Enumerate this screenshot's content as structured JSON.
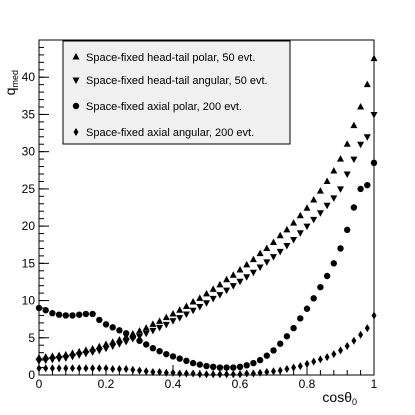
{
  "chart_data": {
    "type": "scatter",
    "xlabel": "cosθ",
    "xlabel_sub": "0",
    "ylabel": "q",
    "ylabel_sub": "med",
    "xlim": [
      0,
      1
    ],
    "ylim": [
      0,
      45
    ],
    "x_ticks": [
      0,
      0.2,
      0.4,
      0.6,
      0.8,
      1
    ],
    "x_tick_labels": [
      "0",
      "0.2",
      "0.4",
      "0.6",
      "0.8",
      "1"
    ],
    "y_ticks": [
      0,
      5,
      10,
      15,
      20,
      25,
      30,
      35,
      40
    ],
    "y_tick_labels": [
      "0",
      "5",
      "10",
      "15",
      "20",
      "25",
      "30",
      "35",
      "40"
    ],
    "grid": false,
    "legend_position": "top-left",
    "series": [
      {
        "name": "Space-fixed head-tail polar, 50 evt.",
        "marker": "triangle-up",
        "x": [
          0.0,
          0.02,
          0.04,
          0.06,
          0.08,
          0.1,
          0.12,
          0.14,
          0.16,
          0.18,
          0.2,
          0.22,
          0.24,
          0.26,
          0.28,
          0.3,
          0.32,
          0.34,
          0.36,
          0.38,
          0.4,
          0.42,
          0.44,
          0.46,
          0.48,
          0.5,
          0.52,
          0.54,
          0.56,
          0.58,
          0.6,
          0.62,
          0.64,
          0.66,
          0.68,
          0.7,
          0.72,
          0.74,
          0.76,
          0.78,
          0.8,
          0.82,
          0.84,
          0.86,
          0.88,
          0.9,
          0.92,
          0.94,
          0.96,
          0.98,
          1.0
        ],
        "y": [
          2.3,
          2.4,
          2.5,
          2.6,
          2.7,
          2.9,
          3.1,
          3.3,
          3.5,
          3.8,
          4.1,
          4.4,
          4.7,
          5.1,
          5.5,
          5.9,
          6.3,
          6.8,
          7.2,
          7.7,
          8.2,
          8.7,
          9.2,
          9.8,
          10.3,
          10.9,
          11.5,
          12.1,
          12.8,
          13.4,
          14.1,
          14.8,
          15.5,
          16.3,
          17.0,
          17.8,
          18.7,
          19.5,
          20.4,
          21.4,
          22.4,
          23.5,
          24.7,
          26.0,
          27.4,
          29.0,
          31.0,
          33.5,
          36.0,
          39.0,
          42.5
        ]
      },
      {
        "name": "Space-fixed head-tail angular, 50 evt.",
        "marker": "triangle-down",
        "x": [
          0.0,
          0.02,
          0.04,
          0.06,
          0.08,
          0.1,
          0.12,
          0.14,
          0.16,
          0.18,
          0.2,
          0.22,
          0.24,
          0.26,
          0.28,
          0.3,
          0.32,
          0.34,
          0.36,
          0.38,
          0.4,
          0.42,
          0.44,
          0.46,
          0.48,
          0.5,
          0.52,
          0.54,
          0.56,
          0.58,
          0.6,
          0.62,
          0.64,
          0.66,
          0.68,
          0.7,
          0.72,
          0.74,
          0.76,
          0.78,
          0.8,
          0.82,
          0.84,
          0.86,
          0.88,
          0.9,
          0.92,
          0.94,
          0.96,
          0.98,
          1.0
        ],
        "y": [
          1.9,
          2.0,
          2.1,
          2.2,
          2.3,
          2.5,
          2.7,
          2.9,
          3.1,
          3.3,
          3.6,
          3.9,
          4.2,
          4.5,
          4.9,
          5.2,
          5.6,
          6.0,
          6.4,
          6.8,
          7.3,
          7.7,
          8.2,
          8.7,
          9.2,
          9.7,
          10.3,
          10.8,
          11.4,
          12.0,
          12.6,
          13.2,
          13.8,
          14.5,
          15.2,
          15.9,
          16.6,
          17.4,
          18.2,
          19.1,
          20.0,
          20.9,
          21.8,
          22.8,
          23.8,
          25.0,
          27.0,
          29.0,
          31.0,
          32.0,
          35.0
        ]
      },
      {
        "name": "Space-fixed axial polar, 200 evt.",
        "marker": "circle",
        "x": [
          0.0,
          0.02,
          0.04,
          0.06,
          0.08,
          0.1,
          0.12,
          0.14,
          0.16,
          0.18,
          0.2,
          0.22,
          0.24,
          0.26,
          0.28,
          0.3,
          0.32,
          0.34,
          0.36,
          0.38,
          0.4,
          0.42,
          0.44,
          0.46,
          0.48,
          0.5,
          0.52,
          0.54,
          0.56,
          0.58,
          0.6,
          0.62,
          0.64,
          0.66,
          0.68,
          0.7,
          0.72,
          0.74,
          0.76,
          0.78,
          0.8,
          0.82,
          0.84,
          0.86,
          0.88,
          0.9,
          0.92,
          0.94,
          0.96,
          0.98,
          1.0
        ],
        "y": [
          9.0,
          8.7,
          8.3,
          8.1,
          8.0,
          8.0,
          8.1,
          8.2,
          8.2,
          7.4,
          6.8,
          6.4,
          6.0,
          5.6,
          5.1,
          4.6,
          4.1,
          3.6,
          3.2,
          2.8,
          2.5,
          2.2,
          1.9,
          1.6,
          1.4,
          1.2,
          1.1,
          1.0,
          1.0,
          1.0,
          1.1,
          1.3,
          1.6,
          2.0,
          2.6,
          3.3,
          4.2,
          5.2,
          6.3,
          7.6,
          8.9,
          10.3,
          11.8,
          13.3,
          15.0,
          17.0,
          19.5,
          22.5,
          25.0,
          25.5,
          28.5
        ]
      },
      {
        "name": "Space-fixed axial angular, 200 evt.",
        "marker": "diamond",
        "x": [
          0.0,
          0.02,
          0.04,
          0.06,
          0.08,
          0.1,
          0.12,
          0.14,
          0.16,
          0.18,
          0.2,
          0.22,
          0.24,
          0.26,
          0.28,
          0.3,
          0.32,
          0.34,
          0.36,
          0.38,
          0.4,
          0.42,
          0.44,
          0.46,
          0.48,
          0.5,
          0.52,
          0.54,
          0.56,
          0.58,
          0.6,
          0.62,
          0.64,
          0.66,
          0.68,
          0.7,
          0.72,
          0.74,
          0.76,
          0.78,
          0.8,
          0.82,
          0.84,
          0.86,
          0.88,
          0.9,
          0.92,
          0.94,
          0.96,
          0.98,
          1.0
        ],
        "y": [
          0.9,
          0.9,
          0.9,
          0.9,
          0.9,
          0.9,
          0.9,
          0.9,
          0.9,
          0.9,
          0.9,
          0.8,
          0.8,
          0.8,
          0.7,
          0.6,
          0.5,
          0.4,
          0.4,
          0.3,
          0.3,
          0.2,
          0.2,
          0.2,
          0.1,
          0.1,
          0.1,
          0.1,
          0.1,
          0.1,
          0.1,
          0.2,
          0.2,
          0.3,
          0.4,
          0.5,
          0.6,
          0.8,
          1.0,
          1.2,
          1.5,
          1.8,
          2.1,
          2.4,
          2.8,
          3.3,
          3.9,
          4.6,
          5.4,
          6.3,
          8.0
        ]
      }
    ]
  }
}
